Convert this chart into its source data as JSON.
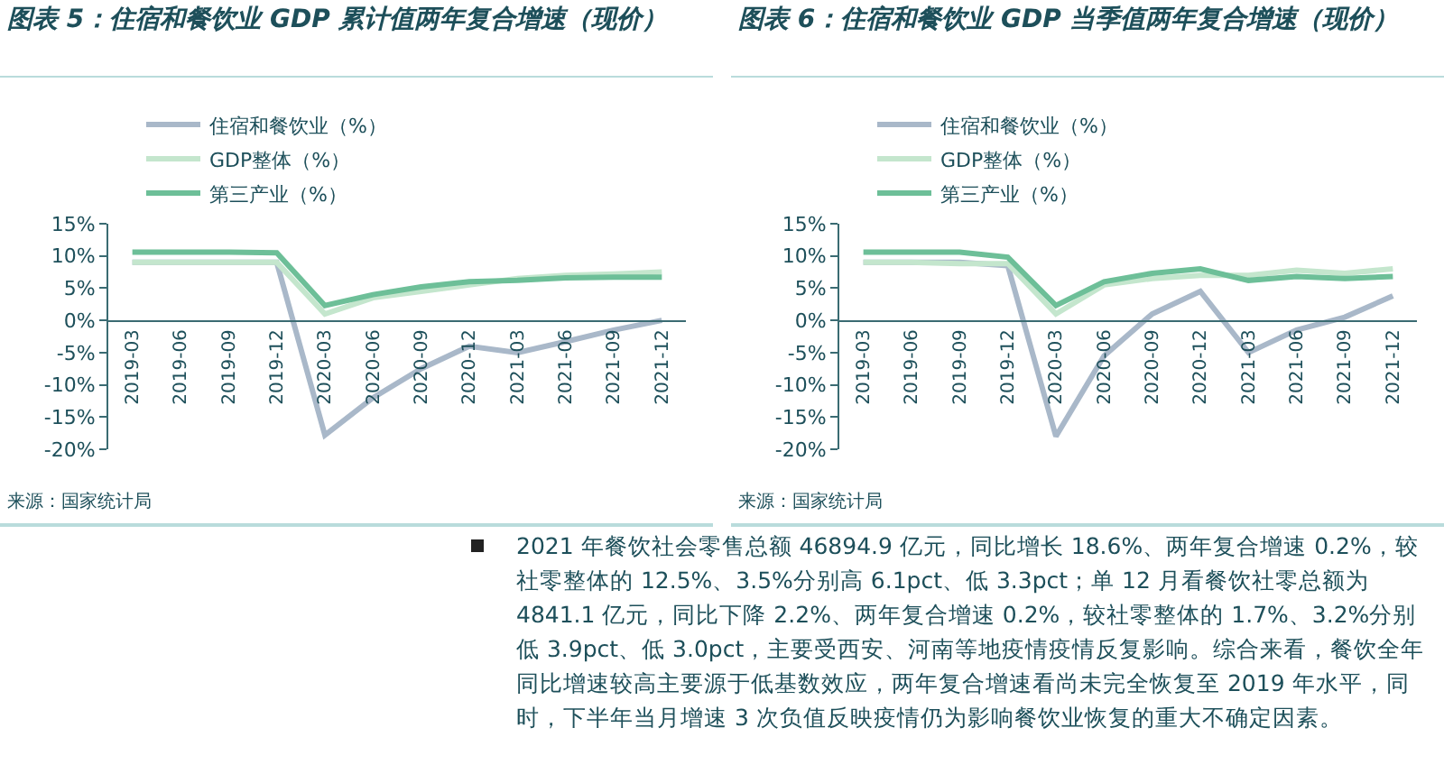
{
  "chart_data": [
    {
      "type": "line",
      "title": "图表 5：住宿和餐饮业 GDP 累计值两年复合增速（现价）",
      "categories": [
        "2019-03",
        "2019-06",
        "2019-09",
        "2019-12",
        "2020-03",
        "2020-06",
        "2020-09",
        "2020-12",
        "2021-03",
        "2021-06",
        "2021-09",
        "2021-12"
      ],
      "series": [
        {
          "name": "住宿和餐饮业（%）",
          "color": "#a9b8c9",
          "values": [
            9.0,
            9.0,
            9.0,
            9.0,
            -17.8,
            -12.0,
            -7.5,
            -4.0,
            -5.0,
            -3.3,
            -1.5,
            0.0
          ]
        },
        {
          "name": "GDP整体（%）",
          "color": "#c4e6cd",
          "values": [
            9.0,
            9.0,
            9.0,
            9.0,
            1.0,
            3.5,
            4.5,
            5.5,
            6.5,
            7.0,
            7.2,
            7.5
          ]
        },
        {
          "name": "第三产业（%）",
          "color": "#6dbf98",
          "values": [
            10.6,
            10.6,
            10.6,
            10.5,
            2.3,
            4.0,
            5.2,
            6.0,
            6.2,
            6.6,
            6.7,
            6.7
          ]
        }
      ],
      "ylim": [
        -20,
        15
      ],
      "yticks": [
        {
          "value": -20,
          "label": "-20%"
        },
        {
          "value": -15,
          "label": "-15%"
        },
        {
          "value": -10,
          "label": "-10%"
        },
        {
          "value": -5,
          "label": "-5%"
        },
        {
          "value": 0,
          "label": "0%"
        },
        {
          "value": 5,
          "label": "5%"
        },
        {
          "value": 10,
          "label": "10%"
        },
        {
          "value": 15,
          "label": "15%"
        }
      ],
      "grid": false,
      "legend": "top",
      "marker": "none",
      "line_style": "solid",
      "annotations": [
        "来源：国家统计局"
      ]
    },
    {
      "type": "line",
      "title": "图表 6：住宿和餐饮业 GDP 当季值两年复合增速（现价）",
      "categories": [
        "2019-03",
        "2019-06",
        "2019-09",
        "2019-12",
        "2020-03",
        "2020-06",
        "2020-09",
        "2020-12",
        "2021-03",
        "2021-06",
        "2021-09",
        "2021-12"
      ],
      "series": [
        {
          "name": "住宿和餐饮业（%）",
          "color": "#a9b8c9",
          "values": [
            9.0,
            9.0,
            9.0,
            8.5,
            -18.0,
            -5.5,
            1.0,
            4.5,
            -5.0,
            -1.5,
            0.5,
            3.8
          ]
        },
        {
          "name": "GDP整体（%）",
          "color": "#c4e6cd",
          "values": [
            9.0,
            9.0,
            8.8,
            8.8,
            1.0,
            5.5,
            6.5,
            7.0,
            7.0,
            7.8,
            7.3,
            8.0
          ]
        },
        {
          "name": "第三产业（%）",
          "color": "#6dbf98",
          "values": [
            10.6,
            10.6,
            10.6,
            9.8,
            2.3,
            6.0,
            7.3,
            8.0,
            6.2,
            6.8,
            6.5,
            6.8
          ]
        }
      ],
      "ylim": [
        -20,
        15
      ],
      "yticks": [
        {
          "value": -20,
          "label": "-20%"
        },
        {
          "value": -15,
          "label": "-15%"
        },
        {
          "value": -10,
          "label": "-10%"
        },
        {
          "value": -5,
          "label": "-5%"
        },
        {
          "value": 0,
          "label": "0%"
        },
        {
          "value": 5,
          "label": "5%"
        },
        {
          "value": 10,
          "label": "10%"
        },
        {
          "value": 15,
          "label": "15%"
        }
      ],
      "grid": false,
      "legend": "top",
      "marker": "none",
      "line_style": "solid",
      "annotations": [
        "来源：国家统计局"
      ]
    },
    {
      "type": "other",
      "annotations": [
        "2021 年餐饮社会零售总额 46894.9 亿元，同比增长 18.6%、两年复合增速 0.2%，较社零整体的 12.5%、3.5%分别高 6.1pct、低 3.3pct；单 12 月看餐饮社零总额为 4841.1 亿元，同比下降 2.2%、两年复合增速 0.2%，较社零整体的 1.7%、3.2%分别低 3.9pct、低 3.0pct，主要受西安、河南等地疫情疫情反复影响。综合来看，餐饮全年同比增速较高主要源于低基数效应，两年复合增速看尚未完全恢复至 2019 年水平，同时，下半年当月增速 3 次负值反映疫情仍为影响餐饮业恢复的重大不确定因素。"
      ]
    }
  ]
}
